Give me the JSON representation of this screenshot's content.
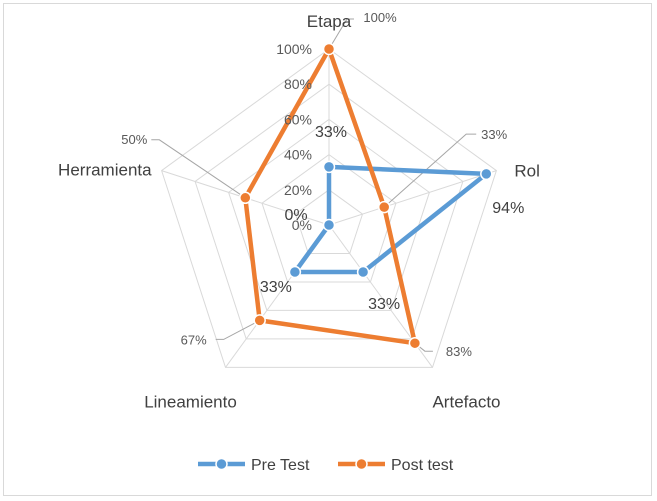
{
  "chart_data": {
    "type": "radar",
    "categories": [
      "Etapa",
      "Rol",
      "Artefacto",
      "Lineamiento",
      "Herramienta"
    ],
    "series": [
      {
        "name": "Pre Test",
        "values": [
          33,
          94,
          33,
          33,
          0
        ],
        "color": "#5B9BD5",
        "data_labels": [
          "33%",
          "94%",
          "33%",
          "33%",
          "0%"
        ]
      },
      {
        "name": "Post test",
        "values": [
          100,
          33,
          83,
          67,
          50
        ],
        "color": "#ED7D31",
        "data_labels": [
          "100%",
          "33%",
          "83%",
          "67%",
          "50%"
        ]
      }
    ],
    "radial_ticks": [
      "0%",
      "20%",
      "40%",
      "60%",
      "80%",
      "100%"
    ],
    "rlim": [
      0,
      100
    ],
    "grid": true,
    "legend": "bottom"
  }
}
